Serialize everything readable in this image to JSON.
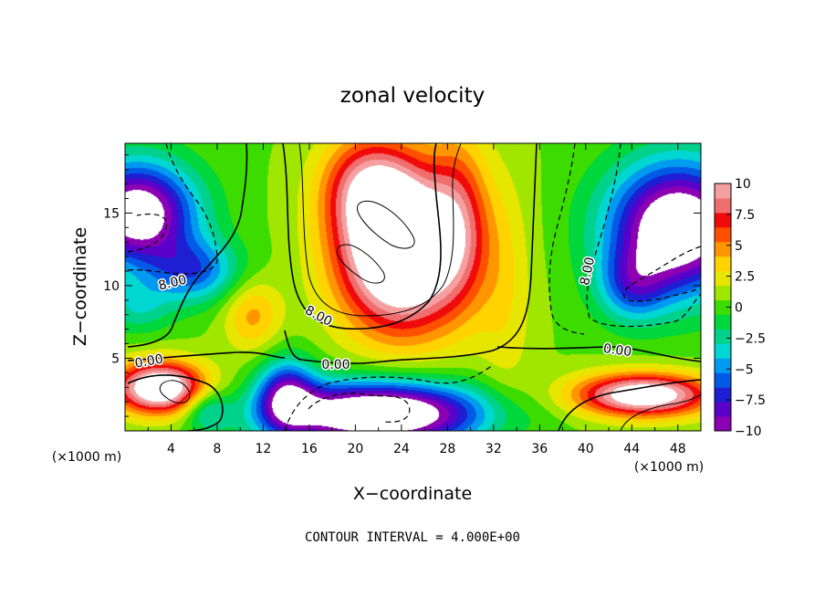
{
  "chart_data": {
    "type": "heatmap",
    "title": "zonal velocity",
    "xlabel": "X−coordinate",
    "ylabel": "Z−coordinate",
    "x_unit_label": "(×1000 m)",
    "y_unit_label": "(×1000 m)",
    "footer": "CONTOUR INTERVAL = 4.000E+00",
    "xlim": [
      0,
      50
    ],
    "ylim": [
      0,
      19.8
    ],
    "x_ticks": [
      "4",
      "8",
      "12",
      "16",
      "20",
      "24",
      "28",
      "32",
      "36",
      "40",
      "44",
      "48"
    ],
    "y_ticks": [
      "5",
      "10",
      "15"
    ],
    "colorbar": {
      "min": -10,
      "max": 10,
      "ticks": [
        "10",
        "7.5",
        "5",
        "2.5",
        "0",
        "−2.5",
        "−5",
        "−7.5",
        "−10"
      ],
      "colors": [
        "#8c00b4",
        "#5a00c8",
        "#1e1ed2",
        "#005ae6",
        "#009bf0",
        "#00d7d2",
        "#00d28c",
        "#00d73c",
        "#3cdc00",
        "#a0e600",
        "#e6e600",
        "#ffd200",
        "#ff9600",
        "#ff5000",
        "#f00a0a",
        "#f06e6e",
        "#f5a0a0"
      ]
    },
    "contour_labels": [
      "8.00",
      "8.00",
      "8.00",
      "0.00",
      "0.00",
      "0.00",
      "0.00"
    ],
    "grid": false
  }
}
